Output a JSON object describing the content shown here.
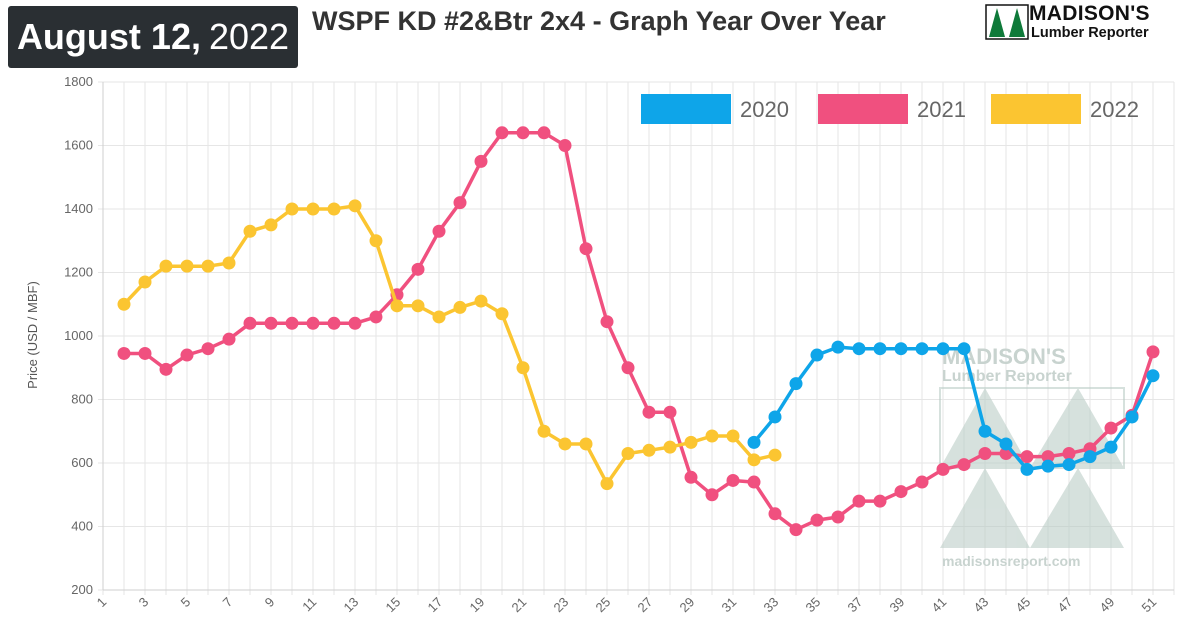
{
  "header": {
    "date_bold": "August 12,",
    "date_year": "2022",
    "title": "WSPF KD #2&Btr 2x4 - Graph Year Over Year",
    "brand_name": "MADISON'S",
    "brand_sub": "Lumber Reporter",
    "brand_color": "#0f7a3a"
  },
  "watermark": {
    "line1": "MADISON'S",
    "line2": "Lumber Reporter",
    "url": "madisonsreport.com"
  },
  "chart_data": {
    "type": "line",
    "title": "WSPF KD #2&Btr 2x4 - Graph Year Over Year",
    "xlabel": "",
    "ylabel": "Price (USD / MBF)",
    "xlim": [
      1,
      52
    ],
    "ylim": [
      200,
      1800
    ],
    "yticks": [
      200,
      400,
      600,
      800,
      1000,
      1200,
      1400,
      1600,
      1800
    ],
    "xticks": [
      1,
      3,
      5,
      7,
      9,
      11,
      13,
      15,
      17,
      19,
      21,
      23,
      25,
      27,
      29,
      31,
      33,
      35,
      37,
      39,
      41,
      43,
      45,
      47,
      49,
      51
    ],
    "grid": true,
    "legend_position": "top-right",
    "series": [
      {
        "name": "2020",
        "color": "#0ea5e9",
        "x": [
          32,
          33,
          34,
          35,
          36,
          37,
          38,
          39,
          40,
          41,
          42,
          43,
          44,
          45,
          46,
          47,
          48,
          49,
          50,
          51
        ],
        "values": [
          665,
          745,
          850,
          940,
          965,
          960,
          960,
          960,
          960,
          960,
          960,
          700,
          660,
          580,
          590,
          595,
          620,
          650,
          745,
          875
        ]
      },
      {
        "name": "2021",
        "color": "#f0507f",
        "x": [
          2,
          3,
          4,
          5,
          6,
          7,
          8,
          9,
          10,
          11,
          12,
          13,
          14,
          15,
          16,
          17,
          18,
          19,
          20,
          21,
          22,
          23,
          24,
          25,
          26,
          27,
          28,
          29,
          30,
          31,
          32,
          33,
          34,
          35,
          36,
          37,
          38,
          39,
          40,
          41,
          42,
          43,
          44,
          45,
          46,
          47,
          48,
          49,
          50,
          51
        ],
        "values": [
          945,
          945,
          895,
          940,
          960,
          990,
          1040,
          1040,
          1040,
          1040,
          1040,
          1040,
          1060,
          1130,
          1210,
          1330,
          1420,
          1550,
          1640,
          1640,
          1640,
          1600,
          1275,
          1045,
          900,
          760,
          760,
          555,
          500,
          545,
          540,
          440,
          390,
          420,
          430,
          480,
          480,
          510,
          540,
          580,
          595,
          630,
          630,
          620,
          620,
          630,
          645,
          710,
          750,
          950
        ]
      },
      {
        "name": "2022",
        "color": "#fbc531",
        "x": [
          2,
          3,
          4,
          5,
          6,
          7,
          8,
          9,
          10,
          11,
          12,
          13,
          14,
          15,
          16,
          17,
          18,
          19,
          20,
          21,
          22,
          23,
          24,
          25,
          26,
          27,
          28,
          29,
          30,
          31,
          32,
          33
        ],
        "values": [
          1100,
          1170,
          1220,
          1220,
          1220,
          1230,
          1330,
          1350,
          1400,
          1400,
          1400,
          1410,
          1300,
          1095,
          1095,
          1060,
          1090,
          1110,
          1070,
          900,
          700,
          660,
          660,
          535,
          630,
          640,
          650,
          665,
          685,
          685,
          610,
          625
        ]
      }
    ]
  }
}
